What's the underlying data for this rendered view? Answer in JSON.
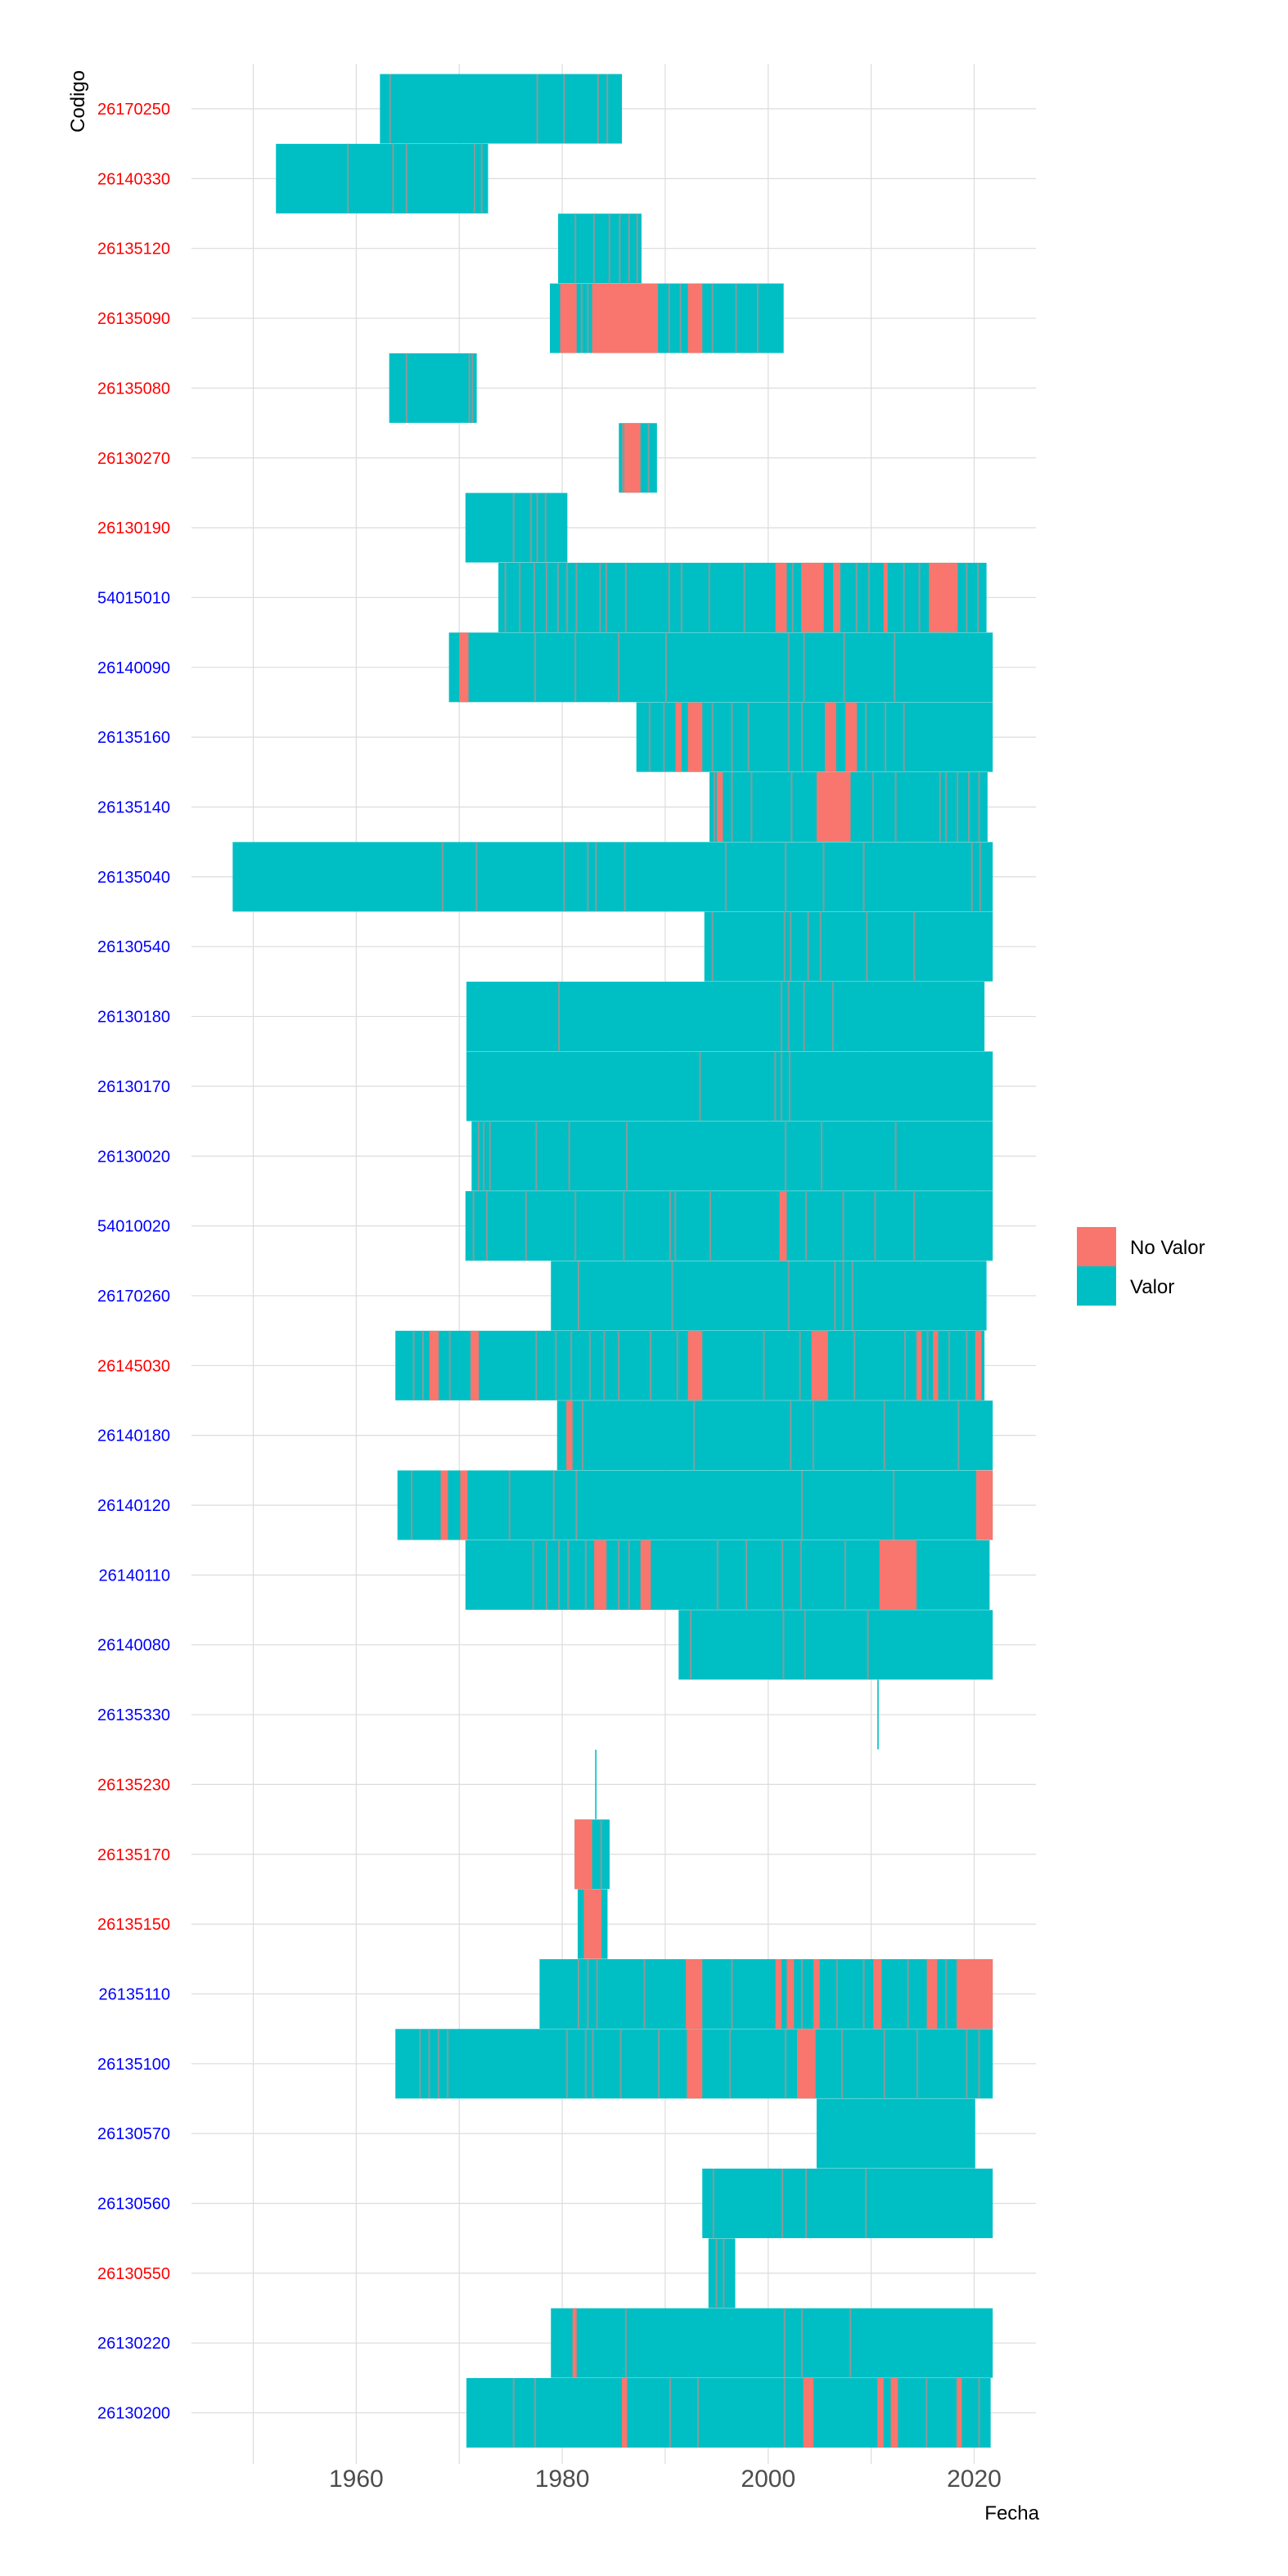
{
  "chart_data": {
    "type": "timeline",
    "xlabel": "Fecha",
    "ylabel": "Codigo",
    "xlim": [
      1944,
      2026
    ],
    "x_ticks": [
      1960,
      1980,
      2000,
      2020
    ],
    "colors": {
      "No Valor": "#F8766D",
      "Valor": "#00BFC4",
      "gap_line": "#8a9a9a"
    },
    "label_colors": {
      "red": "#FF0000",
      "blue": "#0000FF"
    },
    "legend": {
      "position": "right",
      "entries": [
        "No Valor",
        "Valor"
      ]
    },
    "rows": [
      {
        "code": "26170250",
        "label_color": "red",
        "spans": [
          [
            1962.3,
            1985.8
          ]
        ],
        "no_valor": [],
        "gaps": [
          1963.2,
          1977.5,
          1980.1,
          1983.4,
          1984.3
        ]
      },
      {
        "code": "26140330",
        "label_color": "red",
        "spans": [
          [
            1952.2,
            1972.8
          ]
        ],
        "no_valor": [],
        "gaps": [
          1959.1,
          1963.5,
          1964.8,
          1971.4,
          1972.1
        ]
      },
      {
        "code": "26135120",
        "label_color": "red",
        "spans": [
          [
            1979.6,
            1987.7
          ]
        ],
        "no_valor": [],
        "gaps": [
          1981.2,
          1983.0,
          1984.5,
          1985.5,
          1986.4,
          1987.2
        ]
      },
      {
        "code": "26135090",
        "label_color": "red",
        "spans": [
          [
            1978.8,
            2001.5
          ]
        ],
        "no_valor": [
          [
            1979.8,
            1981.4
          ],
          [
            1982.9,
            1989.3
          ],
          [
            1992.2,
            1993.6
          ]
        ],
        "gaps": [
          1981.8,
          1982.4,
          1990.3,
          1991.4,
          1994.5,
          1996.8,
          1998.9
        ]
      },
      {
        "code": "26135080",
        "label_color": "red",
        "spans": [
          [
            1963.2,
            1971.7
          ]
        ],
        "no_valor": [],
        "gaps": [
          1964.8,
          1970.9,
          1971.2
        ]
      },
      {
        "code": "26130270",
        "label_color": "red",
        "spans": [
          [
            1985.5,
            1989.2
          ]
        ],
        "no_valor": [
          [
            1986.0,
            1987.6
          ]
        ],
        "gaps": [
          1985.8,
          1988.3
        ]
      },
      {
        "code": "26130190",
        "label_color": "red",
        "spans": [
          [
            1970.6,
            1980.5
          ]
        ],
        "no_valor": [],
        "gaps": [
          1975.2,
          1976.9,
          1977.5,
          1978.3
        ]
      },
      {
        "code": "54015010",
        "label_color": "blue",
        "spans": [
          [
            1973.8,
            2021.2
          ]
        ],
        "no_valor": [
          [
            2000.7,
            2001.8
          ],
          [
            2003.2,
            2005.4
          ],
          [
            2006.3,
            2007.0
          ],
          [
            2011.2,
            2011.6
          ],
          [
            2015.6,
            2018.4
          ]
        ],
        "gaps": [
          1974.4,
          1975.8,
          1977.2,
          1978.4,
          1979.5,
          1980.4,
          1981.3,
          1983.6,
          1984.2,
          1986.1,
          1990.3,
          1991.5,
          1994.2,
          1997.6,
          2002.3,
          2008.5,
          2009.7,
          2013.1,
          2014.6,
          2019.2,
          2020.3
        ]
      },
      {
        "code": "26140090",
        "label_color": "blue",
        "spans": [
          [
            1969.0,
            2021.8
          ]
        ],
        "no_valor": [
          [
            1970.0,
            1970.9
          ]
        ],
        "gaps": [
          1977.3,
          1981.2,
          1985.4,
          1990.0,
          2001.9,
          2003.4,
          2007.3,
          2012.2
        ]
      },
      {
        "code": "26135160",
        "label_color": "blue",
        "spans": [
          [
            1987.2,
            2021.8
          ]
        ],
        "no_valor": [
          [
            1991.0,
            1991.6
          ],
          [
            1992.2,
            1993.6
          ],
          [
            2005.5,
            2006.6
          ],
          [
            2007.5,
            2008.6
          ]
        ],
        "gaps": [
          1988.4,
          1989.8,
          1994.5,
          1996.4,
          1998.0,
          2001.9,
          2003.2,
          2009.4,
          2011.3,
          2013.1
        ]
      },
      {
        "code": "26135140",
        "label_color": "blue",
        "spans": [
          [
            1994.3,
            2021.3
          ]
        ],
        "no_valor": [
          [
            1995.0,
            1995.6
          ],
          [
            2004.7,
            2008.0
          ]
        ],
        "gaps": [
          1994.7,
          1996.4,
          1998.3,
          2002.2,
          2010.1,
          2012.3,
          2016.6,
          2017.2,
          2018.3,
          2019.4,
          2020.4
        ]
      },
      {
        "code": "26135040",
        "label_color": "blue",
        "spans": [
          [
            1948.0,
            2021.8
          ]
        ],
        "no_valor": [],
        "gaps": [
          1968.3,
          1971.6,
          1980.1,
          1982.4,
          1983.2,
          1986.0,
          1995.8,
          2001.6,
          2005.3,
          2009.2,
          2019.7,
          2020.5
        ]
      },
      {
        "code": "26130540",
        "label_color": "blue",
        "spans": [
          [
            1993.8,
            2021.8
          ]
        ],
        "no_valor": [],
        "gaps": [
          1994.5,
          2001.5,
          2002.1,
          2003.8,
          2005.0,
          2009.5,
          2014.1
        ]
      },
      {
        "code": "26130180",
        "label_color": "blue",
        "spans": [
          [
            1970.7,
            2021.0
          ]
        ],
        "no_valor": [],
        "gaps": [
          1979.6,
          2001.2,
          2001.9,
          2003.4,
          2006.2
        ]
      },
      {
        "code": "26130170",
        "label_color": "blue",
        "spans": [
          [
            1970.7,
            2021.8
          ]
        ],
        "no_valor": [],
        "gaps": [
          1993.3,
          2000.6,
          2001.2,
          2002.0
        ]
      },
      {
        "code": "26130020",
        "label_color": "blue",
        "spans": [
          [
            1971.2,
            2021.8
          ]
        ],
        "no_valor": [],
        "gaps": [
          1971.8,
          1972.3,
          1972.9,
          1977.4,
          1980.6,
          1986.2,
          2001.6,
          2005.1,
          2012.3
        ]
      },
      {
        "code": "54010020",
        "label_color": "blue",
        "spans": [
          [
            1970.6,
            2021.8
          ]
        ],
        "no_valor": [
          [
            2001.1,
            2001.8
          ]
        ],
        "gaps": [
          1971.3,
          1972.6,
          1976.4,
          1981.2,
          1985.9,
          1990.4,
          1990.9,
          1994.3,
          2003.6,
          2007.2,
          2010.3,
          2014.1
        ]
      },
      {
        "code": "26170260",
        "label_color": "blue",
        "spans": [
          [
            1978.9,
            2021.2
          ]
        ],
        "no_valor": [],
        "gaps": [
          1981.5,
          1990.6,
          2001.9,
          2006.4,
          2007.2,
          2008.1
        ]
      },
      {
        "code": "26145030",
        "label_color": "red",
        "spans": [
          [
            1963.8,
            2021.0
          ]
        ],
        "no_valor": [
          [
            1967.1,
            1968.0
          ],
          [
            1971.1,
            1971.9
          ],
          [
            1992.2,
            1993.6
          ],
          [
            2004.2,
            2005.8
          ],
          [
            2014.4,
            2014.9
          ],
          [
            2016.0,
            2016.5
          ],
          [
            2020.1,
            2020.7
          ]
        ],
        "gaps": [
          1965.5,
          1966.4,
          1969.0,
          1977.4,
          1979.3,
          1980.8,
          1982.6,
          1984.0,
          1985.4,
          1988.5,
          1991.1,
          1999.5,
          2003.0,
          2008.3,
          2013.2,
          2015.4,
          2017.5,
          2019.2
        ]
      },
      {
        "code": "26140180",
        "label_color": "blue",
        "spans": [
          [
            1979.5,
            2021.8
          ]
        ],
        "no_valor": [
          [
            1980.4,
            1981.0
          ]
        ],
        "gaps": [
          1981.9,
          1992.7,
          2002.1,
          2004.3,
          2011.2,
          2018.4
        ]
      },
      {
        "code": "26140120",
        "label_color": "blue",
        "spans": [
          [
            1964.0,
            2021.8
          ]
        ],
        "no_valor": [
          [
            1968.2,
            1968.9
          ],
          [
            1970.1,
            1970.8
          ],
          [
            2020.2,
            2021.8
          ]
        ],
        "gaps": [
          1965.3,
          1974.8,
          1979.1,
          1981.3,
          2003.2,
          2012.1
        ]
      },
      {
        "code": "26140110",
        "label_color": "blue",
        "spans": [
          [
            1970.6,
            2021.5
          ]
        ],
        "no_valor": [
          [
            1983.1,
            1984.3
          ],
          [
            1987.6,
            1988.6
          ],
          [
            2010.8,
            2014.4
          ]
        ],
        "gaps": [
          1977.1,
          1978.4,
          1979.6,
          1980.5,
          1982.2,
          1985.4,
          1986.4,
          1995.0,
          1997.8,
          2001.3,
          2003.1,
          2007.4
        ]
      },
      {
        "code": "26140080",
        "label_color": "blue",
        "spans": [
          [
            1991.3,
            2021.8
          ]
        ],
        "no_valor": [],
        "gaps": [
          1992.4,
          2001.4,
          2003.5,
          2009.6
        ]
      },
      {
        "code": "26135330",
        "label_color": "blue",
        "spans": [],
        "no_valor": [],
        "gaps": [],
        "thin": [
          2010.6
        ]
      },
      {
        "code": "26135230",
        "label_color": "red",
        "spans": [],
        "no_valor": [],
        "gaps": [],
        "thin": [
          1983.2
        ]
      },
      {
        "code": "26135170",
        "label_color": "red",
        "spans": [
          [
            1981.2,
            1984.6
          ]
        ],
        "no_valor": [
          [
            1981.2,
            1982.9
          ]
        ],
        "gaps": [
          1983.7
        ]
      },
      {
        "code": "26135150",
        "label_color": "red",
        "spans": [
          [
            1981.5,
            1984.4
          ]
        ],
        "no_valor": [
          [
            1982.1,
            1983.8
          ]
        ],
        "gaps": []
      },
      {
        "code": "26135110",
        "label_color": "blue",
        "spans": [
          [
            1977.8,
            2021.8
          ]
        ],
        "no_valor": [
          [
            1992.0,
            1993.6
          ],
          [
            2000.7,
            2001.3
          ],
          [
            2001.8,
            2002.5
          ],
          [
            2004.4,
            2005.0
          ],
          [
            2010.2,
            2011.0
          ],
          [
            2015.4,
            2016.4
          ],
          [
            2018.3,
            2021.8
          ]
        ],
        "gaps": [
          1981.5,
          1982.4,
          1983.3,
          1987.9,
          1996.4,
          2003.2,
          2006.6,
          2009.2,
          2013.5,
          2017.2
        ]
      },
      {
        "code": "26135100",
        "label_color": "blue",
        "spans": [
          [
            1963.8,
            2021.8
          ]
        ],
        "no_valor": [
          [
            1992.1,
            1993.6
          ],
          [
            2002.8,
            2004.6
          ]
        ],
        "gaps": [
          1966.1,
          1967.0,
          1967.9,
          1968.8,
          1980.4,
          1982.2,
          1982.9,
          1985.6,
          1989.3,
          1996.2,
          2001.6,
          2007.1,
          2011.2,
          2014.4,
          2019.2,
          2020.4
        ]
      },
      {
        "code": "26130570",
        "label_color": "blue",
        "spans": [
          [
            2004.7,
            2020.1
          ]
        ],
        "no_valor": [],
        "gaps": []
      },
      {
        "code": "26130560",
        "label_color": "blue",
        "spans": [
          [
            1993.6,
            2021.8
          ]
        ],
        "no_valor": [],
        "gaps": [
          1994.6,
          2001.3,
          2003.6,
          2009.4
        ]
      },
      {
        "code": "26130550",
        "label_color": "red",
        "spans": [
          [
            1994.2,
            1996.8
          ]
        ],
        "no_valor": [],
        "gaps": [
          1994.9,
          1995.6
        ]
      },
      {
        "code": "26130220",
        "label_color": "blue",
        "spans": [
          [
            1978.9,
            2021.8
          ]
        ],
        "no_valor": [
          [
            1981.0,
            1981.4
          ]
        ],
        "gaps": [
          1986.1,
          2001.5,
          2003.2,
          2007.9
        ]
      },
      {
        "code": "26130200",
        "label_color": "blue",
        "spans": [
          [
            1970.7,
            2021.6
          ]
        ],
        "no_valor": [
          [
            1985.8,
            1986.3
          ],
          [
            2003.4,
            2004.4
          ],
          [
            2010.6,
            2011.2
          ],
          [
            2011.9,
            2012.6
          ],
          [
            2018.3,
            2018.8
          ]
        ],
        "gaps": [
          1975.2,
          1977.3,
          1990.4,
          1993.1,
          2001.5,
          2015.3,
          2020.4
        ]
      }
    ]
  }
}
